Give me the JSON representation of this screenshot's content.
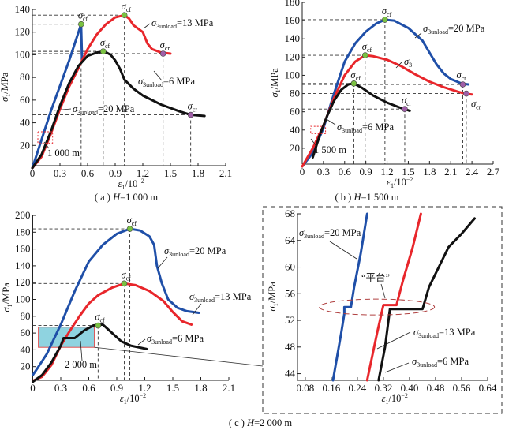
{
  "colors": {
    "blue": "#1f4fa8",
    "red": "#e8262b",
    "black": "#111111",
    "peak_marker": "#7ac142",
    "residual_marker": "#a05fa8",
    "inset_fill": "#8fd3e0",
    "inset_border": "#e05050"
  },
  "chart_data": [
    {
      "id": "a",
      "type": "line",
      "caption": {
        "prefix": "( a )  ",
        "var": "H",
        "rest": "=1 000 m"
      },
      "ylabel": {
        "sym": "σ",
        "sub": "1",
        "rest": "/MPa"
      },
      "xlabel": {
        "sym": "ε",
        "sub": "1",
        "rest": "/10",
        "sup": "−2"
      },
      "xlim": [
        0,
        2.1
      ],
      "ylim": [
        0,
        140
      ],
      "xticks": [
        "0",
        "0.3",
        "0.6",
        "0.9",
        "1.2",
        "1.5",
        "1.8",
        "2.1"
      ],
      "yticks": [
        "20",
        "40",
        "60",
        "80",
        "100",
        "120",
        "140"
      ],
      "series": [
        {
          "color": "blue",
          "points": [
            [
              0,
              0
            ],
            [
              0.2,
              50
            ],
            [
              0.4,
              95
            ],
            [
              0.53,
              127
            ],
            [
              0.54,
              95
            ]
          ]
        },
        {
          "color": "red",
          "points": [
            [
              0,
              0
            ],
            [
              0.1,
              10
            ],
            [
              0.2,
              30
            ],
            [
              0.3,
              52
            ],
            [
              0.4,
              72
            ],
            [
              0.5,
              88
            ],
            [
              0.6,
              105
            ],
            [
              0.7,
              118
            ],
            [
              0.8,
              127
            ],
            [
              0.9,
              133
            ],
            [
              1.0,
              135
            ],
            [
              1.05,
              132
            ],
            [
              1.1,
              126
            ],
            [
              1.2,
              120
            ],
            [
              1.25,
              110
            ],
            [
              1.3,
              105
            ],
            [
              1.4,
              102
            ],
            [
              1.5,
              101
            ]
          ]
        },
        {
          "color": "black",
          "points": [
            [
              0,
              0
            ],
            [
              0.1,
              12
            ],
            [
              0.2,
              32
            ],
            [
              0.3,
              55
            ],
            [
              0.4,
              75
            ],
            [
              0.5,
              90
            ],
            [
              0.6,
              99
            ],
            [
              0.7,
              102
            ],
            [
              0.78,
              103
            ],
            [
              0.85,
              100
            ],
            [
              0.9,
              95
            ],
            [
              0.95,
              88
            ],
            [
              1.0,
              78
            ],
            [
              1.1,
              70
            ],
            [
              1.2,
              64
            ],
            [
              1.4,
              56
            ],
            [
              1.6,
              50
            ],
            [
              1.72,
              47
            ],
            [
              1.87,
              46
            ]
          ]
        }
      ],
      "markers": [
        {
          "type": "peak",
          "x": 0.53,
          "y": 127,
          "label": {
            "sym": "σ",
            "sub": "cf"
          }
        },
        {
          "type": "peak",
          "x": 1.0,
          "y": 135,
          "label": {
            "sym": "σ",
            "sub": "cf"
          }
        },
        {
          "type": "peak",
          "x": 0.77,
          "y": 103,
          "label": {
            "sym": "σ",
            "sub": "cf"
          }
        },
        {
          "type": "residual",
          "x": 1.42,
          "y": 101,
          "label": {
            "sym": "σ",
            "sub": "cr"
          }
        },
        {
          "type": "residual",
          "x": 1.72,
          "y": 47,
          "label": {
            "sym": "σ",
            "sub": "cr"
          }
        }
      ],
      "annotations": [
        {
          "sym": "σ",
          "sub": "3unload",
          "rest": "=13 MPa"
        },
        {
          "sym": "σ",
          "sub": "3unload",
          "rest": "=6 MPa"
        },
        {
          "sym": "σ",
          "sub": "3unload",
          "rest": "=20 MPa"
        },
        {
          "sym": "",
          "sub": "",
          "rest": "1 000 m"
        }
      ]
    },
    {
      "id": "b",
      "type": "line",
      "caption": {
        "prefix": "( b )  ",
        "var": "H",
        "rest": "=1 500 m"
      },
      "ylabel": {
        "sym": "σ",
        "sub": "1",
        "rest": "/MPa"
      },
      "xlabel": {
        "sym": "ε",
        "sub": "1",
        "rest": "/10",
        "sup": "−2"
      },
      "xlim": [
        0,
        2.7
      ],
      "ylim": [
        0,
        180
      ],
      "xticks": [
        "0",
        "0.3",
        "0.6",
        "0.9",
        "1.2",
        "1.5",
        "1.8",
        "2.1",
        "2.4",
        "2.7"
      ],
      "yticks": [
        "20",
        "40",
        "60",
        "80",
        "100",
        "120",
        "140",
        "160",
        "180"
      ],
      "series": [
        {
          "color": "blue",
          "points": [
            [
              0,
              0
            ],
            [
              0.15,
              15
            ],
            [
              0.3,
              42
            ],
            [
              0.45,
              80
            ],
            [
              0.6,
              115
            ],
            [
              0.75,
              135
            ],
            [
              0.9,
              148
            ],
            [
              1.05,
              157
            ],
            [
              1.17,
              161
            ],
            [
              1.3,
              160
            ],
            [
              1.5,
              152
            ],
            [
              1.7,
              138
            ],
            [
              1.8,
              125
            ],
            [
              1.9,
              112
            ],
            [
              2.0,
              102
            ],
            [
              2.1,
              96
            ],
            [
              2.25,
              91
            ],
            [
              2.35,
              90
            ]
          ]
        },
        {
          "color": "red",
          "points": [
            [
              0,
              0
            ],
            [
              0.15,
              20
            ],
            [
              0.3,
              45
            ],
            [
              0.45,
              75
            ],
            [
              0.6,
              100
            ],
            [
              0.75,
              115
            ],
            [
              0.89,
              122
            ],
            [
              1.0,
              121
            ],
            [
              1.2,
              117
            ],
            [
              1.4,
              110
            ],
            [
              1.6,
              101
            ],
            [
              1.8,
              93
            ],
            [
              2.0,
              87
            ],
            [
              2.2,
              82
            ],
            [
              2.3,
              80
            ],
            [
              2.4,
              79
            ]
          ]
        },
        {
          "color": "black",
          "points": [
            [
              0.15,
              10
            ],
            [
              0.25,
              35
            ],
            [
              0.35,
              55
            ],
            [
              0.45,
              72
            ],
            [
              0.55,
              84
            ],
            [
              0.65,
              90
            ],
            [
              0.73,
              91
            ],
            [
              0.85,
              86
            ],
            [
              1.0,
              78
            ],
            [
              1.2,
              70
            ],
            [
              1.4,
              64
            ],
            [
              1.45,
              63
            ],
            [
              1.52,
              61
            ]
          ]
        }
      ],
      "markers": [
        {
          "type": "peak",
          "x": 1.17,
          "y": 161,
          "label": {
            "sym": "σ",
            "sub": "cf"
          }
        },
        {
          "type": "peak",
          "x": 0.89,
          "y": 122,
          "label": {
            "sym": "σ",
            "sub": "cf"
          }
        },
        {
          "type": "peak",
          "x": 0.73,
          "y": 91,
          "label": {
            "sym": "σ",
            "sub": "cf"
          }
        },
        {
          "type": "residual",
          "x": 2.27,
          "y": 90,
          "label": {
            "sym": "σ",
            "sub": "cr"
          }
        },
        {
          "type": "residual",
          "x": 2.32,
          "y": 80,
          "label": {
            "sym": "σ",
            "sub": "cr"
          }
        },
        {
          "type": "residual",
          "x": 1.45,
          "y": 63,
          "label": {
            "sym": "σ",
            "sub": "cr"
          }
        }
      ],
      "annotations": [
        {
          "sym": "σ",
          "sub": "3unload",
          "rest": "=20 MPa"
        },
        {
          "sym": "σ",
          "sub": "3",
          "rest": ""
        },
        {
          "sym": "σ",
          "sub": "3unload",
          "rest": "=6 MPa"
        },
        {
          "sym": "",
          "sub": "",
          "rest": "1 500 m"
        }
      ]
    },
    {
      "id": "c",
      "type": "line",
      "caption": {
        "prefix": "( c )  ",
        "var": "H",
        "rest": "=2 000 m"
      },
      "ylabel": {
        "sym": "σ",
        "sub": "1",
        "rest": "/MPa"
      },
      "xlabel": {
        "sym": "ε",
        "sub": "1",
        "rest": "/10",
        "sup": "−2"
      },
      "xlim": [
        0,
        2.1
      ],
      "ylim": [
        0,
        200
      ],
      "xticks": [
        "0",
        "0.3",
        "0.6",
        "0.9",
        "1.2",
        "1.5",
        "1.8",
        "2.1"
      ],
      "yticks": [
        "20",
        "40",
        "60",
        "80",
        "100",
        "120",
        "140",
        "160",
        "180",
        "200"
      ],
      "series": [
        {
          "color": "blue",
          "points": [
            [
              0,
              10
            ],
            [
              0.05,
              18
            ],
            [
              0.15,
              35
            ],
            [
              0.3,
              70
            ],
            [
              0.45,
              110
            ],
            [
              0.6,
              145
            ],
            [
              0.75,
              165
            ],
            [
              0.9,
              178
            ],
            [
              1.04,
              184
            ],
            [
              1.15,
              182
            ],
            [
              1.25,
              175
            ],
            [
              1.3,
              165
            ],
            [
              1.33,
              140
            ],
            [
              1.38,
              120
            ],
            [
              1.45,
              100
            ],
            [
              1.55,
              90
            ],
            [
              1.65,
              86
            ],
            [
              1.78,
              84
            ]
          ]
        },
        {
          "color": "red",
          "points": [
            [
              0,
              3
            ],
            [
              0.1,
              8
            ],
            [
              0.2,
              22
            ],
            [
              0.3,
              45
            ],
            [
              0.4,
              63
            ],
            [
              0.5,
              80
            ],
            [
              0.6,
              95
            ],
            [
              0.7,
              105
            ],
            [
              0.85,
              114
            ],
            [
              0.98,
              119
            ],
            [
              1.1,
              117
            ],
            [
              1.25,
              110
            ],
            [
              1.4,
              98
            ],
            [
              1.5,
              85
            ],
            [
              1.6,
              74
            ],
            [
              1.7,
              70
            ]
          ]
        },
        {
          "color": "black",
          "points": [
            [
              0,
              2
            ],
            [
              0.1,
              10
            ],
            [
              0.2,
              25
            ],
            [
              0.3,
              45
            ],
            [
              0.33,
              54
            ],
            [
              0.45,
              54
            ],
            [
              0.55,
              63
            ],
            [
              0.65,
              69
            ],
            [
              0.75,
              70
            ],
            [
              0.85,
              60
            ],
            [
              0.95,
              50
            ],
            [
              1.05,
              45
            ],
            [
              1.22,
              41
            ]
          ]
        }
      ],
      "markers": [
        {
          "type": "peak",
          "x": 1.04,
          "y": 184,
          "label": {
            "sym": "σ",
            "sub": "cf"
          }
        },
        {
          "type": "peak",
          "x": 0.98,
          "y": 119,
          "label": {
            "sym": "σ",
            "sub": "cf"
          }
        },
        {
          "type": "peak",
          "x": 0.7,
          "y": 69,
          "label": {
            "sym": "σ",
            "sub": "cf"
          }
        }
      ],
      "inset_region": {
        "x": [
          0.06,
          0.66
        ],
        "y": [
          43,
          67
        ]
      },
      "annotations": [
        {
          "sym": "σ",
          "sub": "3unload",
          "rest": "=20 MPa"
        },
        {
          "sym": "σ",
          "sub": "3unload",
          "rest": "=13 MPa"
        },
        {
          "sym": "σ",
          "sub": "3unload",
          "rest": "=6 MPa"
        },
        {
          "sym": "",
          "sub": "",
          "rest": "2 000 m"
        }
      ]
    },
    {
      "id": "d",
      "type": "line",
      "ylabel": {
        "sym": "σ",
        "sub": "1",
        "rest": "/MPa"
      },
      "xlabel": {
        "sym": "ε",
        "sub": "1",
        "rest": "/10",
        "sup": "−2"
      },
      "xlim": [
        0.056,
        0.64
      ],
      "ylim": [
        43,
        68
      ],
      "xticks": [
        "0.08",
        "0.16",
        "0.24",
        "0.32",
        "0.40",
        "0.48",
        "0.56",
        "0.64"
      ],
      "yticks": [
        "44",
        "48",
        "52",
        "56",
        "60",
        "64",
        "68"
      ],
      "series": [
        {
          "color": "blue",
          "points": [
            [
              0.165,
              43
            ],
            [
              0.19,
              50
            ],
            [
              0.2,
              53
            ],
            [
              0.2,
              54
            ],
            [
              0.22,
              54
            ],
            [
              0.23,
              57
            ],
            [
              0.25,
              62
            ],
            [
              0.27,
              68
            ]
          ]
        },
        {
          "color": "red",
          "points": [
            [
              0.27,
              43
            ],
            [
              0.3,
              50
            ],
            [
              0.32,
              54.3
            ],
            [
              0.36,
              54.3
            ],
            [
              0.38,
              58
            ],
            [
              0.41,
              63
            ],
            [
              0.435,
              68
            ]
          ]
        },
        {
          "color": "black",
          "points": [
            [
              0.305,
              43
            ],
            [
              0.325,
              48
            ],
            [
              0.34,
              53.7
            ],
            [
              0.44,
              53.7
            ],
            [
              0.46,
              57
            ],
            [
              0.49,
              60
            ],
            [
              0.52,
              63
            ],
            [
              0.56,
              65
            ],
            [
              0.6,
              67.3
            ]
          ]
        }
      ],
      "markers": [],
      "annotations": [
        {
          "sym": "σ",
          "sub": "3unload",
          "rest": "=20 MPa"
        },
        {
          "sym": "",
          "sub": "",
          "rest": "“平台”"
        },
        {
          "sym": "σ",
          "sub": "3unload",
          "rest": "=13 MPa"
        },
        {
          "sym": "σ",
          "sub": "3unload",
          "rest": "=6 MPa"
        }
      ]
    }
  ]
}
